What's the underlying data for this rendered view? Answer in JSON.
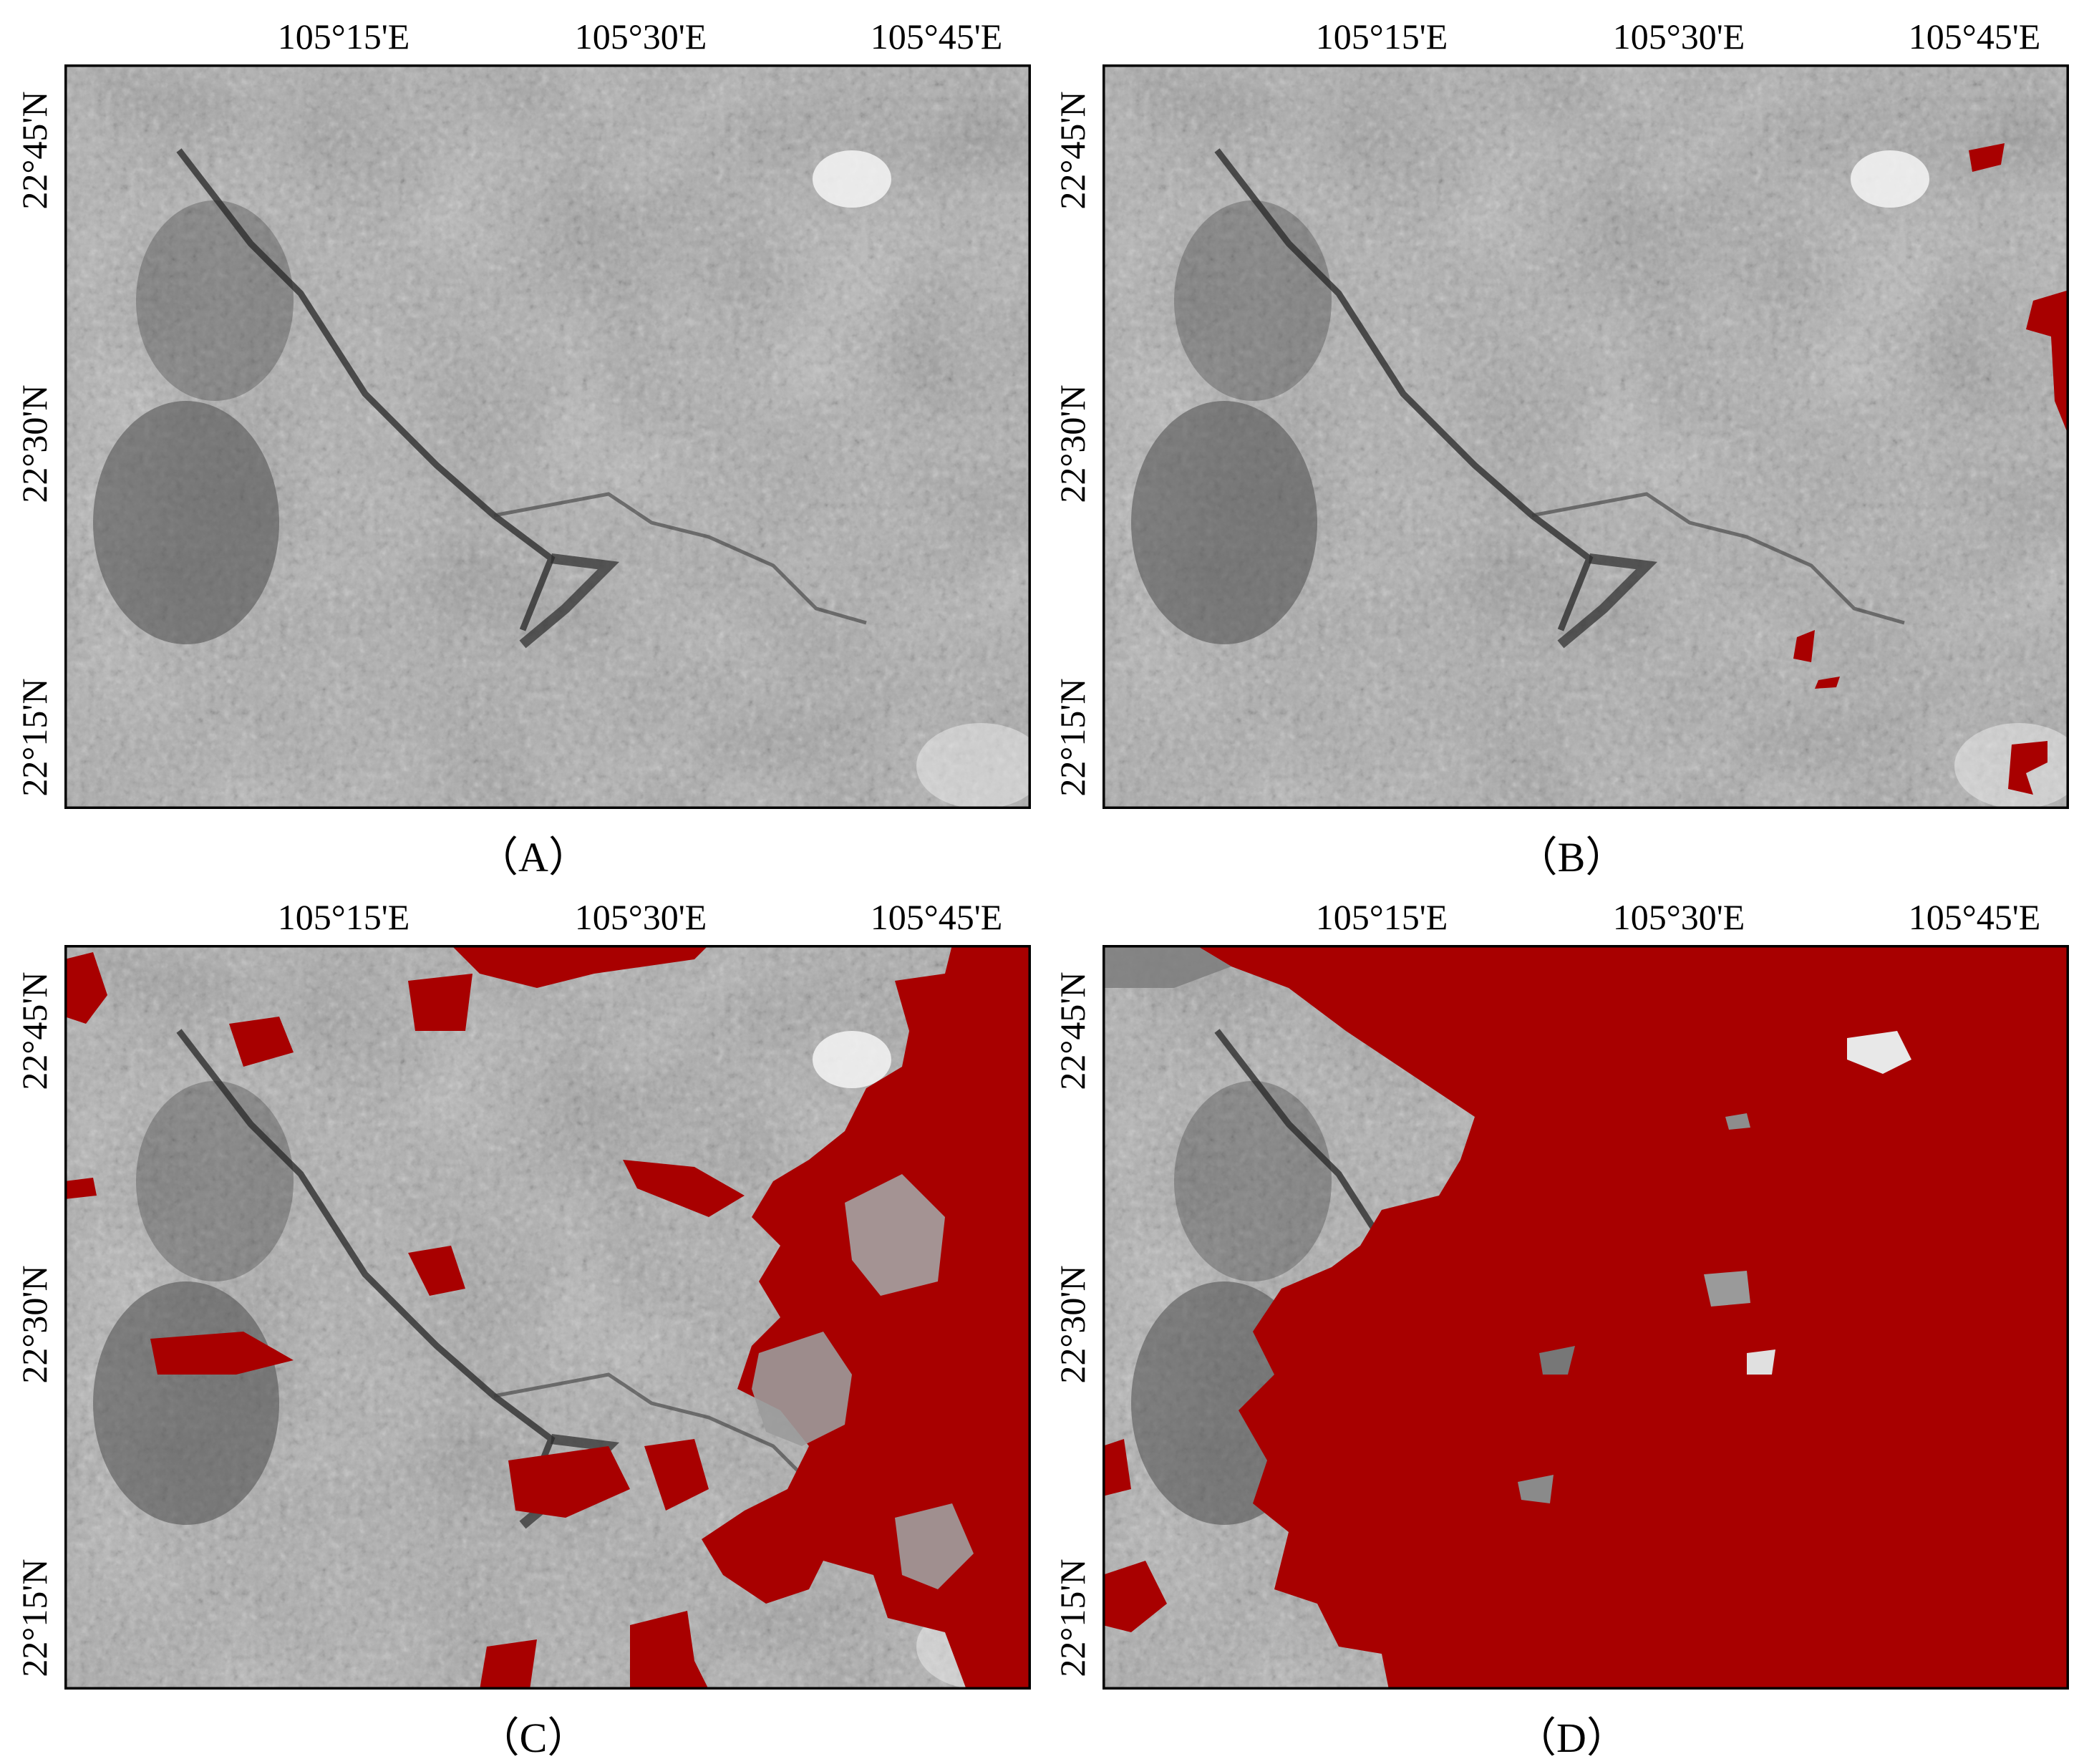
{
  "colors": {
    "highlight": "#a80000",
    "frame": "#000000"
  },
  "axes": {
    "longitude_labels": [
      "105°15'E",
      "105°30'E",
      "105°45'E"
    ],
    "latitude_labels": [
      "22°45'N",
      "22°30'N",
      "22°15'N"
    ]
  },
  "panels": [
    {
      "caption": "（A）",
      "highlight_share": 0.0
    },
    {
      "caption": "（B）",
      "highlight_share": 0.02
    },
    {
      "caption": "（C）",
      "highlight_share": 0.35
    },
    {
      "caption": "（D）",
      "highlight_share": 0.7
    }
  ]
}
